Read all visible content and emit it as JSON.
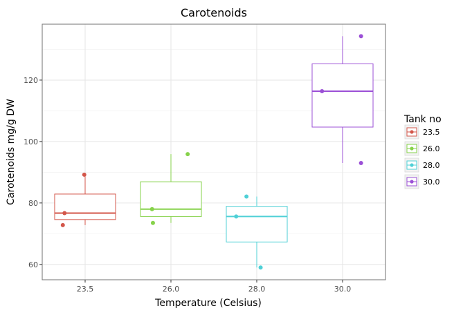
{
  "chart_data": {
    "type": "boxplot",
    "title": "Carotenoids",
    "xlabel": "Temperature (Celsius)",
    "ylabel": "Carotenoids mg/g DW",
    "categories": [
      "23.5",
      "26.0",
      "28.0",
      "30.0"
    ],
    "ylim": [
      55.0,
      138.2
    ],
    "yticks": [
      60,
      80,
      100,
      120
    ],
    "grid": true,
    "legend": {
      "title": "Tank no",
      "placement": "right",
      "entries": [
        "23.5",
        "26.0",
        "28.0",
        "30.0"
      ]
    },
    "series": [
      {
        "name": "23.5",
        "color": "#d3564a",
        "whisker_low": 72.8,
        "q1": 74.6,
        "median": 76.7,
        "q3": 82.9,
        "whisker_high": 89.2,
        "points": [
          {
            "jitter": -0.48,
            "y": 76.7
          },
          {
            "jitter": -0.52,
            "y": 72.8
          },
          {
            "jitter": -0.02,
            "y": 89.2
          }
        ]
      },
      {
        "name": "26.0",
        "color": "#86d24a",
        "whisker_low": 73.5,
        "q1": 75.6,
        "median": 78.0,
        "q3": 86.9,
        "whisker_high": 95.9,
        "points": [
          {
            "jitter": -0.44,
            "y": 78.0
          },
          {
            "jitter": -0.42,
            "y": 73.5
          },
          {
            "jitter": 0.39,
            "y": 95.9
          }
        ]
      },
      {
        "name": "28.0",
        "color": "#4fd0d6",
        "whisker_low": 59.0,
        "q1": 67.3,
        "median": 75.6,
        "q3": 78.9,
        "whisker_high": 82.1,
        "points": [
          {
            "jitter": -0.48,
            "y": 75.6
          },
          {
            "jitter": -0.24,
            "y": 82.1
          },
          {
            "jitter": 0.09,
            "y": 59.0
          }
        ]
      },
      {
        "name": "30.0",
        "color": "#9b4fd6",
        "whisker_low": 93.0,
        "q1": 104.7,
        "median": 116.4,
        "q3": 125.3,
        "whisker_high": 134.3,
        "points": [
          {
            "jitter": -0.48,
            "y": 116.4
          },
          {
            "jitter": 0.43,
            "y": 93.0
          },
          {
            "jitter": 0.43,
            "y": 134.3
          }
        ]
      }
    ]
  }
}
